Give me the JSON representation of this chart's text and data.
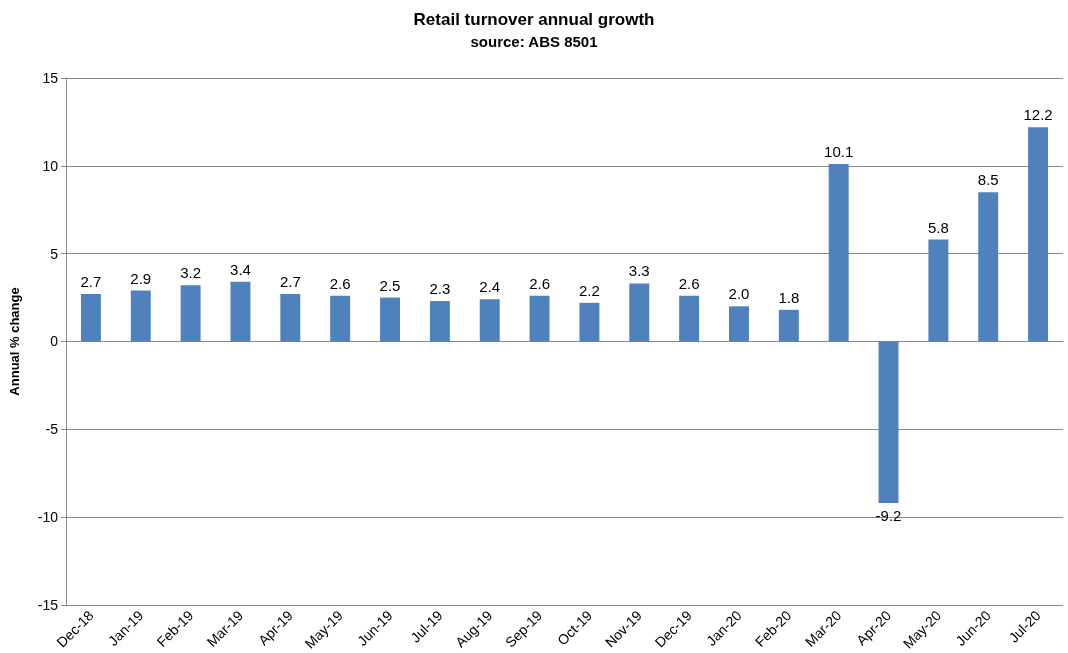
{
  "chart_data": {
    "type": "bar",
    "title": "Retail turnover annual growth",
    "subtitle": "source: ABS 8501",
    "ylabel": "Annual % change",
    "categories": [
      "Dec-18",
      "Jan-19",
      "Feb-19",
      "Mar-19",
      "Apr-19",
      "May-19",
      "Jun-19",
      "Jul-19",
      "Aug-19",
      "Sep-19",
      "Oct-19",
      "Nov-19",
      "Dec-19",
      "Jan-20",
      "Feb-20",
      "Mar-20",
      "Apr-20",
      "May-20",
      "Jun-20",
      "Jul-20"
    ],
    "values": [
      2.7,
      2.9,
      3.2,
      3.4,
      2.7,
      2.6,
      2.5,
      2.3,
      2.4,
      2.6,
      2.2,
      3.3,
      2.6,
      2.0,
      1.8,
      10.1,
      -9.2,
      5.8,
      8.5,
      12.2
    ],
    "value_labels": [
      "2.7",
      "2.9",
      "3.2",
      "3.4",
      "2.7",
      "2.6",
      "2.5",
      "2.3",
      "2.4",
      "2.6",
      "2.2",
      "3.3",
      "2.6",
      "2.0",
      "1.8",
      "10.1",
      "-9.2",
      "5.8",
      "8.5",
      "12.2"
    ],
    "color": "#4f81bd",
    "ylim": [
      -15,
      15
    ],
    "yticks": [
      -15,
      -10,
      -5,
      0,
      5,
      10,
      15
    ],
    "grid": "y"
  }
}
